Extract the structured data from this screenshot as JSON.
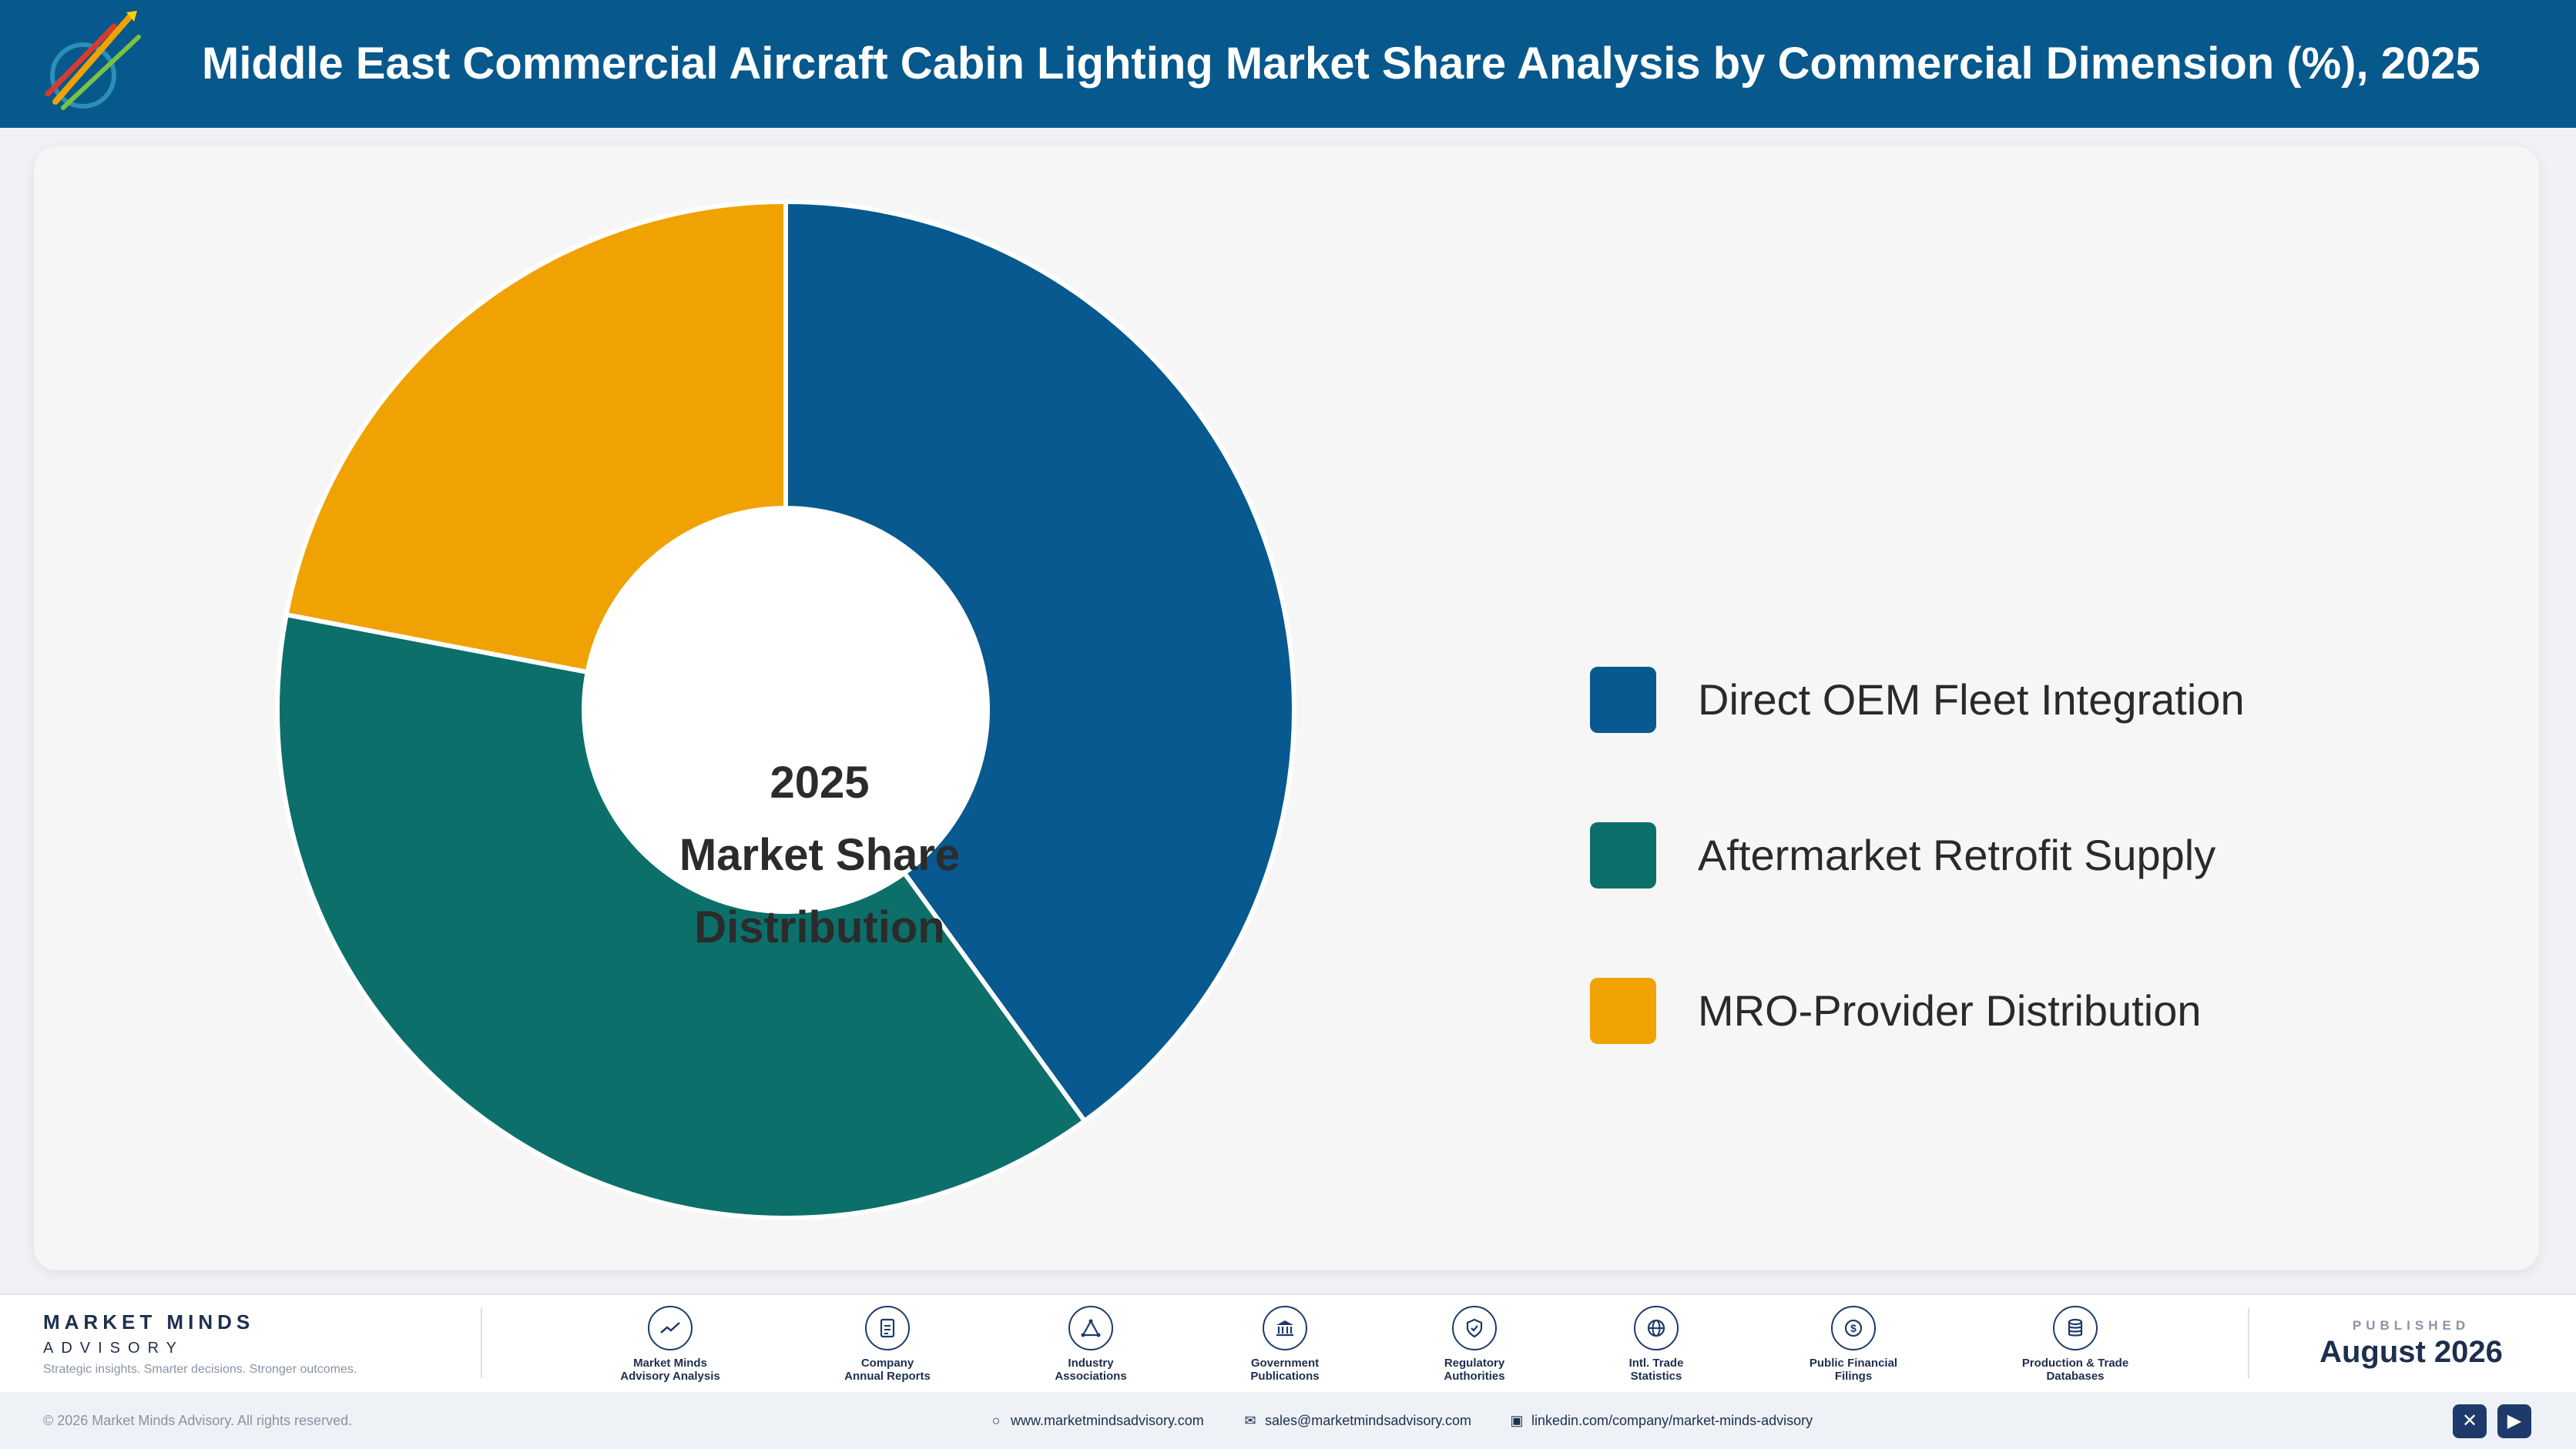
{
  "header": {
    "title": "Middle East Commercial Aircraft Cabin Lighting Market Share Analysis by Commercial Dimension (%), 2025"
  },
  "chart_data": {
    "type": "pie",
    "style": "donut",
    "center_label": [
      "2025",
      "Market Share",
      "Distribution"
    ],
    "categories": [
      "Direct OEM Fleet Integration",
      "Aftermarket Retrofit Supply",
      "MRO-Provider Distribution"
    ],
    "values": [
      40,
      38,
      22
    ],
    "colors": [
      "#07598f",
      "#0c6f6a",
      "#f0a202"
    ],
    "legend_position": "right"
  },
  "footer": {
    "brand": {
      "name": "MARKET MINDS",
      "sub": "ADVISORY",
      "tagline": "Strategic insights. Smarter decisions. Stronger outcomes."
    },
    "sources": [
      {
        "line1": "Market Minds",
        "line2": "Advisory Analysis",
        "icon": "trend-icon"
      },
      {
        "line1": "Company",
        "line2": "Annual Reports",
        "icon": "document-icon"
      },
      {
        "line1": "Industry",
        "line2": "Associations",
        "icon": "network-icon"
      },
      {
        "line1": "Government",
        "line2": "Publications",
        "icon": "government-icon"
      },
      {
        "line1": "Regulatory",
        "line2": "Authorities",
        "icon": "shield-icon"
      },
      {
        "line1": "Intl. Trade",
        "line2": "Statistics",
        "icon": "globe-icon"
      },
      {
        "line1": "Public Financial",
        "line2": "Filings",
        "icon": "dollar-icon"
      },
      {
        "line1": "Production & Trade",
        "line2": "Databases",
        "icon": "database-icon"
      }
    ],
    "published_label": "PUBLISHED",
    "published_date": "August 2026"
  },
  "bottom_bar": {
    "copyright": "© 2026 Market Minds Advisory. All rights reserved.",
    "website": "www.marketmindsadvisory.com",
    "email": "sales@marketmindsadvisory.com",
    "linkedin": "linkedin.com/company/market-minds-advisory"
  }
}
